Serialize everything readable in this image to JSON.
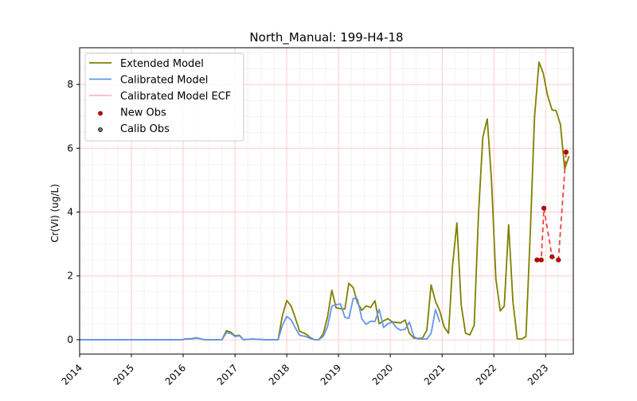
{
  "chart_data": {
    "type": "line",
    "title": "North_Manual: 199-H4-18",
    "xlabel": "",
    "ylabel": "Cr(VI) (ug/L)",
    "x_ticks": [
      "2014",
      "2015",
      "2016",
      "2017",
      "2018",
      "2019",
      "2020",
      "2021",
      "2022",
      "2023"
    ],
    "y_ticks": [
      0,
      2,
      4,
      6,
      8
    ],
    "xlim": [
      "2014-01-01",
      "2023-07-15"
    ],
    "ylim": [
      -0.45,
      9.15
    ],
    "grid": true,
    "legend_position": "top-left",
    "colors": {
      "extended": "#808000",
      "calibrated": "#6495ed",
      "ecf": "#ffb6c1",
      "new_obs": "#cc0000",
      "new_obs_line": "#ee4444",
      "grid_major": "#ffcccc",
      "grid_minor": "#f2f2f2"
    },
    "legend": [
      {
        "key": "extended",
        "label": "Extended Model",
        "kind": "line"
      },
      {
        "key": "calibrated",
        "label": "Calibrated Model",
        "kind": "line"
      },
      {
        "key": "ecf",
        "label": "Calibrated Model ECF",
        "kind": "line"
      },
      {
        "key": "new_obs",
        "label": "New Obs",
        "kind": "marker-red"
      },
      {
        "key": "calib_obs",
        "label": "Calib Obs",
        "kind": "marker-black"
      }
    ],
    "series": [
      {
        "key": "extended",
        "name": "Extended Model",
        "points": [
          [
            "2014-01-01",
            0.0
          ],
          [
            "2015-01-01",
            0.0
          ],
          [
            "2016-01-01",
            0.0
          ],
          [
            "2016-01-15",
            0.03
          ],
          [
            "2016-03-01",
            0.03
          ],
          [
            "2016-04-01",
            0.06
          ],
          [
            "2016-06-01",
            0.0
          ],
          [
            "2016-10-01",
            0.0
          ],
          [
            "2016-11-01",
            0.28
          ],
          [
            "2016-12-01",
            0.24
          ],
          [
            "2017-01-01",
            0.12
          ],
          [
            "2017-02-01",
            0.14
          ],
          [
            "2017-03-01",
            0.0
          ],
          [
            "2017-05-01",
            0.02
          ],
          [
            "2017-08-01",
            0.0
          ],
          [
            "2017-11-01",
            0.0
          ],
          [
            "2017-12-01",
            0.75
          ],
          [
            "2018-01-01",
            1.23
          ],
          [
            "2018-02-01",
            1.05
          ],
          [
            "2018-03-01",
            0.7
          ],
          [
            "2018-04-01",
            0.27
          ],
          [
            "2018-05-15",
            0.18
          ],
          [
            "2018-06-15",
            0.07
          ],
          [
            "2018-07-15",
            0.0
          ],
          [
            "2018-08-15",
            0.0
          ],
          [
            "2018-09-15",
            0.18
          ],
          [
            "2018-10-15",
            0.7
          ],
          [
            "2018-11-15",
            1.55
          ],
          [
            "2018-12-15",
            1.0
          ],
          [
            "2019-01-15",
            0.97
          ],
          [
            "2019-02-15",
            0.96
          ],
          [
            "2019-03-15",
            1.77
          ],
          [
            "2019-04-15",
            1.63
          ],
          [
            "2019-05-15",
            1.15
          ],
          [
            "2019-06-15",
            0.92
          ],
          [
            "2019-07-15",
            1.06
          ],
          [
            "2019-08-15",
            1.01
          ],
          [
            "2019-09-15",
            1.22
          ],
          [
            "2019-10-15",
            0.5
          ],
          [
            "2019-11-15",
            0.59
          ],
          [
            "2019-12-15",
            0.66
          ],
          [
            "2020-01-15",
            0.56
          ],
          [
            "2020-02-15",
            0.54
          ],
          [
            "2020-03-15",
            0.53
          ],
          [
            "2020-04-15",
            0.62
          ],
          [
            "2020-05-15",
            0.2
          ],
          [
            "2020-06-15",
            0.05
          ],
          [
            "2020-07-15",
            0.04
          ],
          [
            "2020-08-15",
            0.05
          ],
          [
            "2020-09-15",
            0.3
          ],
          [
            "2020-10-15",
            1.72
          ],
          [
            "2020-11-15",
            1.2
          ],
          [
            "2020-12-15",
            0.9
          ],
          [
            "2021-01-15",
            0.4
          ],
          [
            "2021-02-15",
            0.2
          ],
          [
            "2021-03-15",
            2.3
          ],
          [
            "2021-04-15",
            3.66
          ],
          [
            "2021-05-15",
            1.1
          ],
          [
            "2021-06-15",
            0.2
          ],
          [
            "2021-07-15",
            0.15
          ],
          [
            "2021-08-15",
            0.45
          ],
          [
            "2021-09-15",
            4.0
          ],
          [
            "2021-10-15",
            6.35
          ],
          [
            "2021-11-15",
            6.92
          ],
          [
            "2021-12-15",
            5.0
          ],
          [
            "2022-01-15",
            1.9
          ],
          [
            "2022-02-15",
            0.9
          ],
          [
            "2022-03-15",
            1.05
          ],
          [
            "2022-04-15",
            3.6
          ],
          [
            "2022-05-15",
            1.2
          ],
          [
            "2022-06-15",
            0.03
          ],
          [
            "2022-07-15",
            0.02
          ],
          [
            "2022-08-15",
            0.1
          ],
          [
            "2022-09-15",
            3.4
          ],
          [
            "2022-10-15",
            7.0
          ],
          [
            "2022-11-15",
            8.7
          ],
          [
            "2022-12-15",
            8.35
          ],
          [
            "2023-01-15",
            7.65
          ],
          [
            "2023-02-15",
            7.2
          ],
          [
            "2023-03-15",
            7.18
          ],
          [
            "2023-04-15",
            6.75
          ],
          [
            "2023-05-15",
            5.35
          ],
          [
            "2023-06-15",
            5.75
          ]
        ]
      },
      {
        "key": "calibrated",
        "name": "Calibrated Model",
        "points": [
          [
            "2014-01-01",
            0.0
          ],
          [
            "2015-01-01",
            0.0
          ],
          [
            "2016-01-01",
            0.0
          ],
          [
            "2016-01-15",
            0.02
          ],
          [
            "2016-03-01",
            0.02
          ],
          [
            "2016-04-01",
            0.05
          ],
          [
            "2016-06-01",
            0.0
          ],
          [
            "2016-10-01",
            0.0
          ],
          [
            "2016-11-01",
            0.22
          ],
          [
            "2016-12-01",
            0.2
          ],
          [
            "2017-01-01",
            0.1
          ],
          [
            "2017-02-01",
            0.12
          ],
          [
            "2017-03-01",
            0.0
          ],
          [
            "2017-05-01",
            0.02
          ],
          [
            "2017-08-01",
            0.0
          ],
          [
            "2017-11-01",
            0.0
          ],
          [
            "2017-12-01",
            0.45
          ],
          [
            "2018-01-01",
            0.73
          ],
          [
            "2018-02-01",
            0.62
          ],
          [
            "2018-03-01",
            0.38
          ],
          [
            "2018-04-01",
            0.14
          ],
          [
            "2018-05-15",
            0.1
          ],
          [
            "2018-06-15",
            0.04
          ],
          [
            "2018-07-15",
            0.0
          ],
          [
            "2018-08-15",
            0.0
          ],
          [
            "2018-09-15",
            0.1
          ],
          [
            "2018-10-15",
            0.4
          ],
          [
            "2018-11-15",
            1.05
          ],
          [
            "2018-12-15",
            1.1
          ],
          [
            "2019-01-15",
            1.12
          ],
          [
            "2019-02-15",
            0.7
          ],
          [
            "2019-03-15",
            0.67
          ],
          [
            "2019-04-15",
            1.3
          ],
          [
            "2019-05-15",
            1.27
          ],
          [
            "2019-06-15",
            0.65
          ],
          [
            "2019-07-15",
            0.48
          ],
          [
            "2019-08-15",
            0.58
          ],
          [
            "2019-09-15",
            0.57
          ],
          [
            "2019-10-15",
            0.95
          ],
          [
            "2019-11-15",
            0.38
          ],
          [
            "2019-12-15",
            0.5
          ],
          [
            "2020-01-15",
            0.55
          ],
          [
            "2020-02-15",
            0.37
          ],
          [
            "2020-03-15",
            0.3
          ],
          [
            "2020-04-15",
            0.33
          ],
          [
            "2020-05-15",
            0.55
          ],
          [
            "2020-06-15",
            0.1
          ],
          [
            "2020-07-15",
            0.02
          ],
          [
            "2020-08-15",
            0.02
          ],
          [
            "2020-09-15",
            0.02
          ],
          [
            "2020-10-15",
            0.2
          ],
          [
            "2020-11-15",
            0.95
          ],
          [
            "2020-12-15",
            0.55
          ]
        ]
      }
    ],
    "new_obs": {
      "name": "New Obs",
      "points": [
        [
          "2022-11-01",
          2.5
        ],
        [
          "2022-12-01",
          2.5
        ],
        [
          "2022-12-20",
          4.12
        ],
        [
          "2023-02-15",
          2.6
        ],
        [
          "2023-04-01",
          2.5
        ],
        [
          "2023-05-25",
          5.88
        ]
      ]
    }
  }
}
